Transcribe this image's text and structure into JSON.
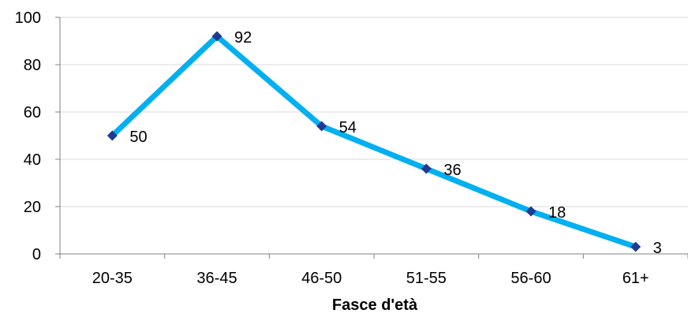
{
  "chart_data": {
    "type": "line",
    "title": "",
    "xlabel": "Fasce d'età",
    "ylabel": "",
    "categories": [
      "20-35",
      "36-45",
      "46-50",
      "51-55",
      "56-60",
      "61+"
    ],
    "series": [
      {
        "values": [
          50,
          92,
          54,
          36,
          18,
          3
        ],
        "line_color": "#00B0F0",
        "marker_color": "#1F3A93",
        "marker": "diamond"
      }
    ],
    "ylim": [
      0,
      100
    ],
    "yticks": [
      0,
      20,
      40,
      60,
      80,
      100
    ],
    "data_labels": true,
    "grid": "horizontal",
    "grid_color": "#d9d9d9",
    "legend": "none"
  }
}
